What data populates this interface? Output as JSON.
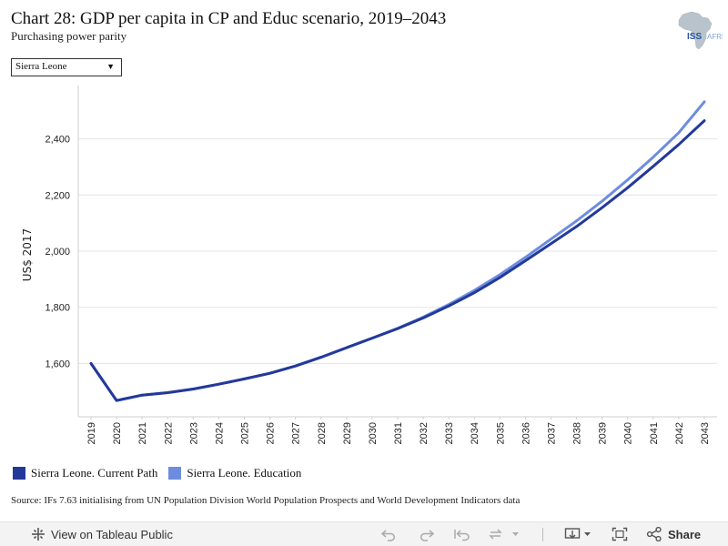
{
  "header": {
    "title": "Chart 28: GDP per capita in CP and Educ scenario, 2019–2043",
    "subtitle": "Purchasing power parity",
    "logo_text": "ISS",
    "logo_text_2": "AFRICA"
  },
  "filter": {
    "selected": "Sierra Leone",
    "icon": "chevron-down-icon"
  },
  "chart_data": {
    "type": "line",
    "ylabel": "US$ 2017",
    "xlabel": "",
    "ylim": [
      1410,
      2590
    ],
    "yticks": [
      1600,
      1800,
      2000,
      2200,
      2400
    ],
    "ytick_labels": [
      "1,600",
      "1,800",
      "2,000",
      "2,200",
      "2,400"
    ],
    "x": [
      2019,
      2020,
      2021,
      2022,
      2023,
      2024,
      2025,
      2026,
      2027,
      2028,
      2029,
      2030,
      2031,
      2032,
      2033,
      2034,
      2035,
      2036,
      2037,
      2038,
      2039,
      2040,
      2041,
      2042,
      2043
    ],
    "x_labels": [
      "2019",
      "2020",
      "2021",
      "2022",
      "2023",
      "2024",
      "2025",
      "2026",
      "2027",
      "2028",
      "2029",
      "2030",
      "2031",
      "2032",
      "2033",
      "2034",
      "2035",
      "2036",
      "2037",
      "2038",
      "2039",
      "2040",
      "2041",
      "2042",
      "2043"
    ],
    "grid": true,
    "legend_position": "bottom-left",
    "series": [
      {
        "name": "Sierra Leone. Current Path",
        "color": "#23399a",
        "values": [
          1600,
          1468,
          1487,
          1496,
          1509,
          1526,
          1545,
          1565,
          1591,
          1622,
          1656,
          1690,
          1724,
          1762,
          1805,
          1852,
          1906,
          1966,
          2027,
          2088,
          2155,
          2226,
          2302,
          2380,
          2465
        ]
      },
      {
        "name": "Sierra Leone. Education",
        "color": "#6d8ce0",
        "values": [
          1600,
          1468,
          1487,
          1496,
          1509,
          1526,
          1545,
          1565,
          1591,
          1622,
          1656,
          1690,
          1725,
          1765,
          1810,
          1860,
          1916,
          1978,
          2043,
          2108,
          2178,
          2254,
          2335,
          2422,
          2532
        ]
      }
    ]
  },
  "source": "Source: IFs 7.63 initialising from UN Population Division World Population Prospects and World Development Indicators data",
  "toolbar": {
    "view_label": "View on Tableau Public",
    "share_label": "Share"
  }
}
